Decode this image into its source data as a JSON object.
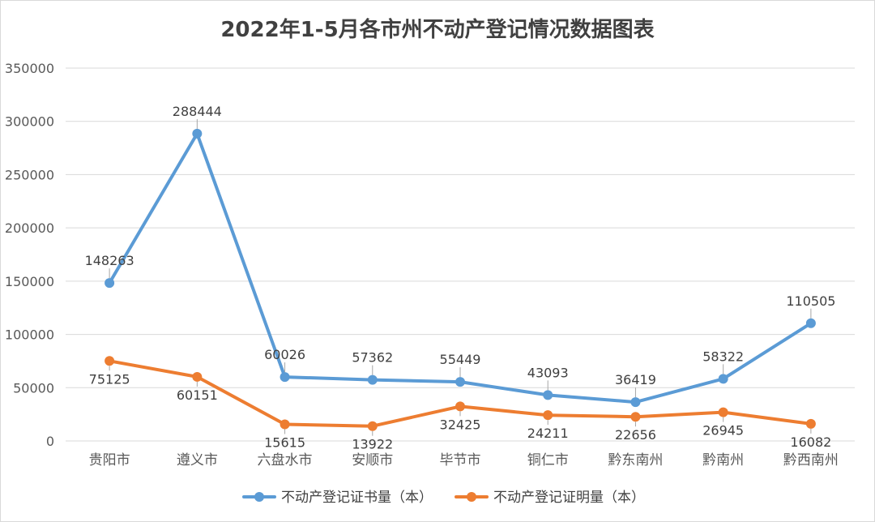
{
  "chart_data": {
    "type": "line",
    "title": "2022年1-5月各市州不动产登记情况数据图表",
    "categories": [
      "贵阳市",
      "遵义市",
      "六盘水市",
      "安顺市",
      "毕节市",
      "铜仁市",
      "黔东南州",
      "黔南州",
      "黔西南州"
    ],
    "yticks": [
      "0",
      "50000",
      "100000",
      "150000",
      "200000",
      "250000",
      "300000",
      "350000"
    ],
    "ylim": [
      0,
      350000
    ],
    "grid": true,
    "legend_position": "bottom",
    "series": [
      {
        "name": "不动产登记证书量（本）",
        "color": "#5b9bd5",
        "values": [
          148263,
          288444,
          60026,
          57362,
          55449,
          43093,
          36419,
          58322,
          110505
        ],
        "label_placement": "above"
      },
      {
        "name": "不动产登记证明量（本）",
        "color": "#ed7d31",
        "values": [
          75125,
          60151,
          15615,
          13922,
          32425,
          24211,
          22656,
          26945,
          16082
        ],
        "label_placement": "below"
      }
    ]
  }
}
